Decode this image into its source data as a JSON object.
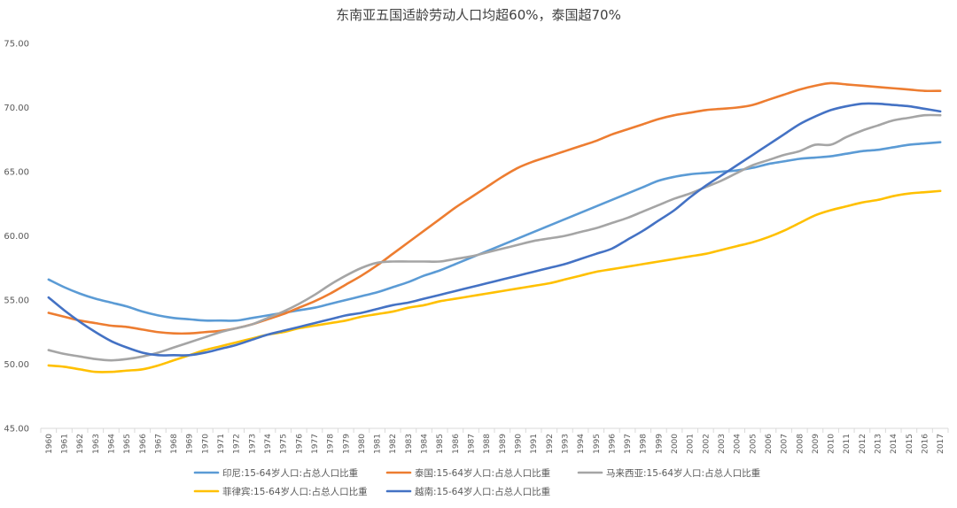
{
  "chart_data": {
    "type": "line",
    "title": "东南亚五国适龄劳动人口均超60%，泰国超70%",
    "xlabel": "",
    "ylabel": "",
    "ylim": [
      45,
      75
    ],
    "yticks": [
      "45.00",
      "50.00",
      "55.00",
      "60.00",
      "65.00",
      "70.00",
      "75.00"
    ],
    "grid": false,
    "legend_position": "bottom",
    "x": [
      1960,
      1961,
      1962,
      1963,
      1964,
      1965,
      1966,
      1967,
      1968,
      1969,
      1970,
      1971,
      1972,
      1973,
      1974,
      1975,
      1976,
      1977,
      1978,
      1979,
      1980,
      1981,
      1982,
      1983,
      1984,
      1985,
      1986,
      1987,
      1988,
      1989,
      1990,
      1991,
      1992,
      1993,
      1994,
      1995,
      1996,
      1997,
      1998,
      1999,
      2000,
      2001,
      2002,
      2003,
      2004,
      2005,
      2006,
      2007,
      2008,
      2009,
      2010,
      2011,
      2012,
      2013,
      2014,
      2015,
      2016,
      2017
    ],
    "series": [
      {
        "name": "印尼:15-64岁人口:占总人口比重",
        "color": "#5B9BD5",
        "values": [
          56.6,
          56.0,
          55.5,
          55.1,
          54.8,
          54.5,
          54.1,
          53.8,
          53.6,
          53.5,
          53.4,
          53.4,
          53.4,
          53.6,
          53.8,
          54.0,
          54.2,
          54.4,
          54.7,
          55.0,
          55.3,
          55.6,
          56.0,
          56.4,
          56.9,
          57.3,
          57.8,
          58.3,
          58.8,
          59.3,
          59.8,
          60.3,
          60.8,
          61.3,
          61.8,
          62.3,
          62.8,
          63.3,
          63.8,
          64.3,
          64.6,
          64.8,
          64.9,
          65.0,
          65.1,
          65.3,
          65.6,
          65.8,
          66.0,
          66.1,
          66.2,
          66.4,
          66.6,
          66.7,
          66.9,
          67.1,
          67.2,
          67.3
        ]
      },
      {
        "name": "泰国:15-64岁人口:占总人口比重",
        "color": "#ED7D31",
        "values": [
          54.0,
          53.7,
          53.4,
          53.2,
          53.0,
          52.9,
          52.7,
          52.5,
          52.4,
          52.4,
          52.5,
          52.6,
          52.8,
          53.1,
          53.5,
          53.9,
          54.4,
          54.9,
          55.5,
          56.2,
          56.9,
          57.7,
          58.6,
          59.5,
          60.4,
          61.3,
          62.2,
          63.0,
          63.8,
          64.6,
          65.3,
          65.8,
          66.2,
          66.6,
          67.0,
          67.4,
          67.9,
          68.3,
          68.7,
          69.1,
          69.4,
          69.6,
          69.8,
          69.9,
          70.0,
          70.2,
          70.6,
          71.0,
          71.4,
          71.7,
          71.9,
          71.8,
          71.7,
          71.6,
          71.5,
          71.4,
          71.3,
          71.3
        ]
      },
      {
        "name": "马来西亚:15-64岁人口:占总人口比重",
        "color": "#A5A5A5",
        "values": [
          51.1,
          50.8,
          50.6,
          50.4,
          50.3,
          50.4,
          50.6,
          50.9,
          51.3,
          51.7,
          52.1,
          52.5,
          52.8,
          53.1,
          53.6,
          54.1,
          54.7,
          55.4,
          56.2,
          56.9,
          57.5,
          57.9,
          58.0,
          58.0,
          58.0,
          58.0,
          58.2,
          58.4,
          58.7,
          59.0,
          59.3,
          59.6,
          59.8,
          60.0,
          60.3,
          60.6,
          61.0,
          61.4,
          61.9,
          62.4,
          62.9,
          63.3,
          63.8,
          64.3,
          64.9,
          65.5,
          65.9,
          66.3,
          66.6,
          67.1,
          67.1,
          67.7,
          68.2,
          68.6,
          69.0,
          69.2,
          69.4,
          69.4
        ]
      },
      {
        "name": "菲律宾:15-64岁人口:占总人口比重",
        "color": "#FFC000",
        "values": [
          49.9,
          49.8,
          49.6,
          49.4,
          49.4,
          49.5,
          49.6,
          49.9,
          50.3,
          50.7,
          51.1,
          51.4,
          51.7,
          52.0,
          52.3,
          52.5,
          52.8,
          53.0,
          53.2,
          53.4,
          53.7,
          53.9,
          54.1,
          54.4,
          54.6,
          54.9,
          55.1,
          55.3,
          55.5,
          55.7,
          55.9,
          56.1,
          56.3,
          56.6,
          56.9,
          57.2,
          57.4,
          57.6,
          57.8,
          58.0,
          58.2,
          58.4,
          58.6,
          58.9,
          59.2,
          59.5,
          59.9,
          60.4,
          61.0,
          61.6,
          62.0,
          62.3,
          62.6,
          62.8,
          63.1,
          63.3,
          63.4,
          63.5
        ]
      },
      {
        "name": "越南:15-64岁人口:占总人口比重",
        "color": "#4472C4",
        "values": [
          55.2,
          54.2,
          53.3,
          52.5,
          51.8,
          51.3,
          50.9,
          50.7,
          50.7,
          50.7,
          50.9,
          51.2,
          51.5,
          51.9,
          52.3,
          52.6,
          52.9,
          53.2,
          53.5,
          53.8,
          54.0,
          54.3,
          54.6,
          54.8,
          55.1,
          55.4,
          55.7,
          56.0,
          56.3,
          56.6,
          56.9,
          57.2,
          57.5,
          57.8,
          58.2,
          58.6,
          59.0,
          59.7,
          60.4,
          61.2,
          62.0,
          63.0,
          63.9,
          64.7,
          65.5,
          66.3,
          67.1,
          67.9,
          68.7,
          69.3,
          69.8,
          70.1,
          70.3,
          70.3,
          70.2,
          70.1,
          69.9,
          69.7
        ]
      }
    ]
  }
}
